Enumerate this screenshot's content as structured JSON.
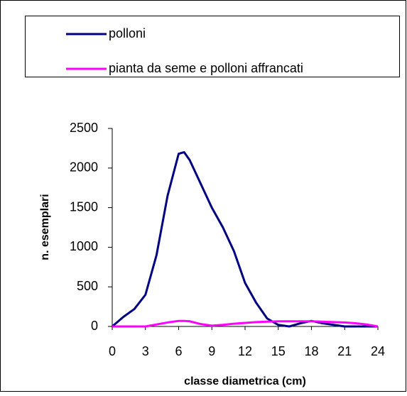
{
  "chart_data": {
    "type": "line",
    "xlabel": "classe diametrica (cm)",
    "ylabel": "n. esemplari",
    "x": [
      0,
      1,
      2,
      3,
      4,
      5,
      6,
      6.5,
      7,
      8,
      9,
      10,
      11,
      12,
      13,
      14,
      15,
      16,
      17,
      18,
      19,
      20,
      21,
      22,
      23,
      24
    ],
    "series": [
      {
        "name": "polloni",
        "color": "#000080",
        "values": [
          0,
          120,
          220,
          400,
          900,
          1650,
          2180,
          2200,
          2100,
          1800,
          1500,
          1250,
          950,
          550,
          300,
          100,
          20,
          0,
          40,
          70,
          40,
          20,
          0,
          0,
          0,
          0
        ]
      },
      {
        "name": "pianta da seme e polloni affrancati",
        "color": "#ff00ff",
        "values": [
          0,
          0,
          0,
          0,
          25,
          50,
          70,
          70,
          65,
          30,
          10,
          20,
          35,
          45,
          55,
          60,
          65,
          65,
          65,
          65,
          60,
          55,
          50,
          40,
          25,
          0
        ]
      }
    ],
    "xlim": [
      0,
      24
    ],
    "xticks": [
      0,
      3,
      6,
      9,
      12,
      15,
      18,
      21,
      24
    ],
    "ylim": [
      0,
      2500
    ],
    "yticks": [
      0,
      500,
      1000,
      1500,
      2000,
      2500
    ]
  }
}
